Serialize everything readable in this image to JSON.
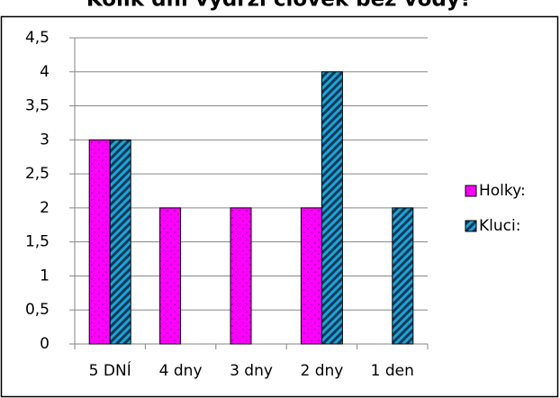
{
  "chart_data": {
    "type": "bar",
    "title": "Kolik dní vydrží člověk bez vody?",
    "categories": [
      "5 DNÍ",
      "4 dny",
      "3 dny",
      "2 dny",
      "1 den"
    ],
    "series": [
      {
        "name": "Holky:",
        "color": "#ff00ff",
        "values": [
          3,
          2,
          2,
          2,
          0
        ]
      },
      {
        "name": "Kluci:",
        "color": "#1fa3d6",
        "values": [
          3,
          0,
          0,
          4,
          2
        ]
      }
    ],
    "ylim": [
      0,
      4.5
    ],
    "yticks": [
      0,
      {
        "value": 0.5,
        "label": "0,5"
      },
      1,
      {
        "value": 1.5,
        "label": "1,5"
      },
      2,
      {
        "value": 2.5,
        "label": "2,5"
      },
      3,
      {
        "value": 3.5,
        "label": "3,5"
      },
      4,
      {
        "value": 4.5,
        "label": "4,5"
      }
    ],
    "grid": true,
    "legend": "right"
  }
}
